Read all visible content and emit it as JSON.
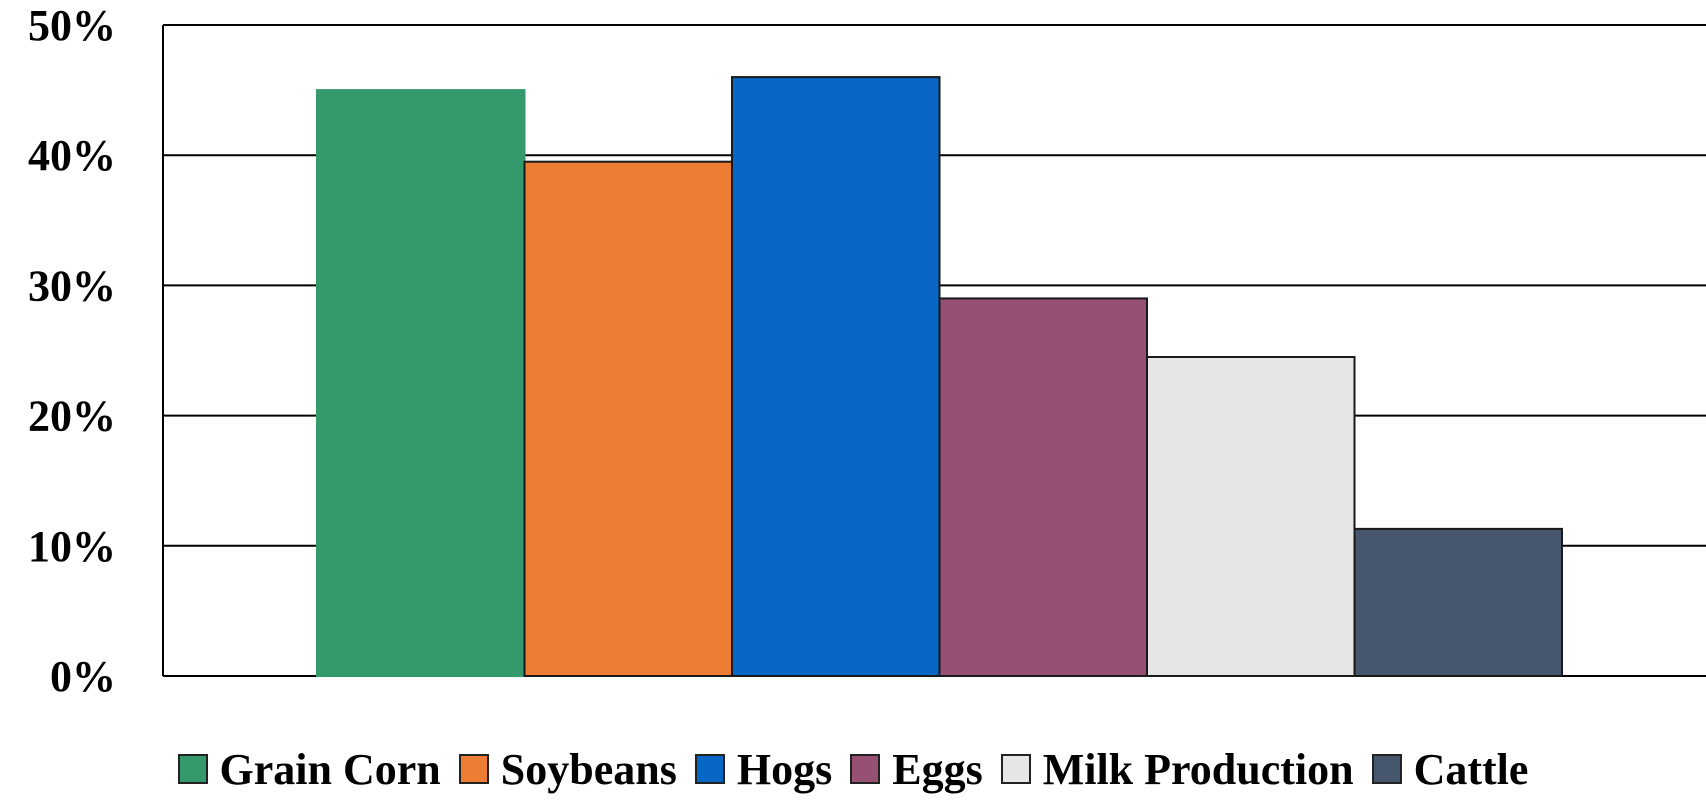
{
  "chart_data": {
    "type": "bar",
    "title": "",
    "xlabel": "",
    "ylabel": "",
    "ylim": [
      0,
      50
    ],
    "y_ticks": [
      "0%",
      "10%",
      "20%",
      "30%",
      "40%",
      "50%"
    ],
    "y_tick_values": [
      0,
      10,
      20,
      30,
      40,
      50
    ],
    "grid": true,
    "legend_position": "bottom",
    "series": [
      {
        "name": "Grain Corn",
        "value": 45,
        "color": "#359A6B"
      },
      {
        "name": "Soybeans",
        "value": 39.5,
        "color": "#ED7D33"
      },
      {
        "name": "Hogs",
        "value": 46,
        "color": "#0866C4"
      },
      {
        "name": "Eggs",
        "value": 29,
        "color": "#965073"
      },
      {
        "name": "Milk Production",
        "value": 24.5,
        "color": "#E6E6E6"
      },
      {
        "name": "Cattle",
        "value": 11.3,
        "color": "#45566D"
      }
    ]
  }
}
